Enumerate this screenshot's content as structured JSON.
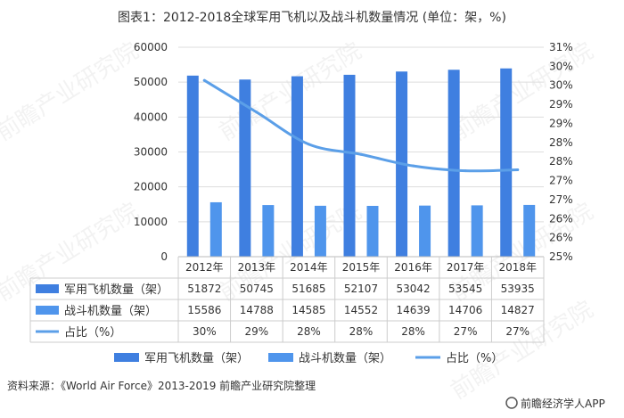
{
  "title": "图表1：2012-2018全球军用飞机以及战斗机数量情况 (单位：架，%)",
  "source": "资料来源：《World Air Force》2013-2019 前瞻产业研究院整理",
  "brand": "前瞻经济学人APP",
  "watermark": "前瞻产业研究院",
  "colors": {
    "military": "#3f7fe0",
    "fighter": "#4f95ec",
    "share": "#5b9fe8",
    "grid": "#dddddd",
    "text": "#333333"
  },
  "chart_data": {
    "type": "bar",
    "categories": [
      "2012年",
      "2013年",
      "2014年",
      "2015年",
      "2016年",
      "2017年",
      "2018年"
    ],
    "series": [
      {
        "name": "军用飞机数量（架）",
        "type": "bar",
        "axis": "left",
        "values": [
          51872,
          50745,
          51685,
          52107,
          53042,
          53545,
          53935
        ],
        "labels": [
          "51872",
          "50745",
          "51685",
          "52107",
          "53042",
          "53545",
          "53935"
        ]
      },
      {
        "name": "战斗机数量（架）",
        "type": "bar",
        "axis": "left",
        "values": [
          15586,
          14788,
          14585,
          14552,
          14639,
          14706,
          14827
        ],
        "labels": [
          "15586",
          "14788",
          "14585",
          "14552",
          "14639",
          "14706",
          "14827"
        ]
      },
      {
        "name": "占比（%）",
        "type": "line",
        "axis": "right",
        "values": [
          30.05,
          29.14,
          28.22,
          27.93,
          27.6,
          27.46,
          27.49
        ],
        "labels": [
          "30%",
          "29%",
          "28%",
          "28%",
          "28%",
          "27%",
          "27%"
        ]
      }
    ],
    "y_left": {
      "min": 0,
      "max": 60000,
      "ticks": [
        "0",
        "10000",
        "20000",
        "30000",
        "40000",
        "50000",
        "60000"
      ]
    },
    "y_right": {
      "min": 25,
      "max": 31,
      "ticks": [
        "25%",
        "26%",
        "26%",
        "27%",
        "27%",
        "28%",
        "28%",
        "29%",
        "29%",
        "30%",
        "30%",
        "31%"
      ]
    },
    "legend": [
      "军用飞机数量（架）",
      "战斗机数量（架）",
      "占比（%）"
    ],
    "legend_position": "bottom",
    "data_table": true
  }
}
